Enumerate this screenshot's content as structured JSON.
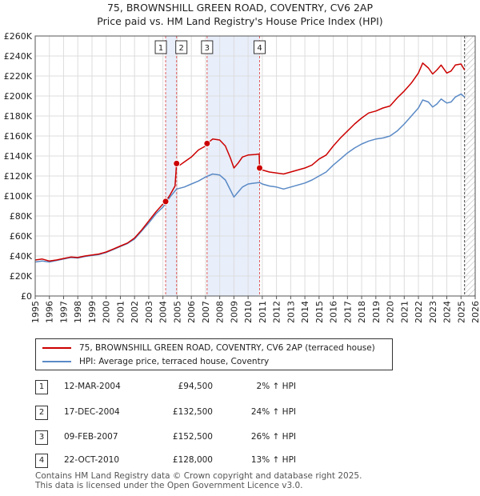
{
  "header": {
    "title": "75, BROWNSHILL GREEN ROAD, COVENTRY, CV6 2AP",
    "subtitle": "Price paid vs. HM Land Registry's House Price Index (HPI)"
  },
  "chart_data": {
    "type": "line",
    "y_tick_labels": [
      "£0",
      "£20K",
      "£40K",
      "£60K",
      "£80K",
      "£100K",
      "£120K",
      "£140K",
      "£160K",
      "£180K",
      "£200K",
      "£220K",
      "£240K",
      "£260K"
    ],
    "x_tick_labels": [
      "1995",
      "1996",
      "1997",
      "1998",
      "1999",
      "2000",
      "2001",
      "2002",
      "2003",
      "2004",
      "2005",
      "2006",
      "2007",
      "2008",
      "2009",
      "2010",
      "2011",
      "2012",
      "2013",
      "2014",
      "2015",
      "2016",
      "2017",
      "2018",
      "2019",
      "2020",
      "2021",
      "2022",
      "2023",
      "2024",
      "2025",
      "2026"
    ],
    "xlim": [
      1995,
      2026
    ],
    "ylim": [
      0,
      260000
    ],
    "series": [
      {
        "name": "75, BROWNSHILL GREEN ROAD, COVENTRY, CV6 2AP (terraced house)",
        "color": "#cc0000",
        "points": [
          [
            1995.0,
            36000
          ],
          [
            1995.5,
            37000
          ],
          [
            1996.0,
            35000
          ],
          [
            1996.5,
            36000
          ],
          [
            1997.0,
            37500
          ],
          [
            1997.5,
            39000
          ],
          [
            1998.0,
            38500
          ],
          [
            1998.5,
            40000
          ],
          [
            1999.0,
            41000
          ],
          [
            1999.5,
            42000
          ],
          [
            2000.0,
            44000
          ],
          [
            2000.5,
            47000
          ],
          [
            2001.0,
            50000
          ],
          [
            2001.5,
            53000
          ],
          [
            2002.0,
            58000
          ],
          [
            2002.5,
            66000
          ],
          [
            2003.0,
            75000
          ],
          [
            2003.5,
            84000
          ],
          [
            2004.0,
            92000
          ],
          [
            2004.19,
            94500
          ],
          [
            2004.5,
            101000
          ],
          [
            2004.85,
            110000
          ],
          [
            2004.96,
            132500
          ],
          [
            2005.2,
            131000
          ],
          [
            2005.5,
            134000
          ],
          [
            2006.0,
            139000
          ],
          [
            2006.5,
            146000
          ],
          [
            2007.0,
            150000
          ],
          [
            2007.11,
            152500
          ],
          [
            2007.5,
            157000
          ],
          [
            2008.0,
            156000
          ],
          [
            2008.4,
            150000
          ],
          [
            2008.75,
            138000
          ],
          [
            2009.0,
            128000
          ],
          [
            2009.3,
            133000
          ],
          [
            2009.6,
            139000
          ],
          [
            2010.0,
            141000
          ],
          [
            2010.5,
            141500
          ],
          [
            2010.78,
            142000
          ],
          [
            2010.81,
            128000
          ],
          [
            2011.0,
            126000
          ],
          [
            2011.5,
            124000
          ],
          [
            2012.0,
            123000
          ],
          [
            2012.5,
            122000
          ],
          [
            2013.0,
            124000
          ],
          [
            2013.5,
            126000
          ],
          [
            2014.0,
            128000
          ],
          [
            2014.5,
            131000
          ],
          [
            2015.0,
            137000
          ],
          [
            2015.5,
            141000
          ],
          [
            2016.0,
            150000
          ],
          [
            2016.5,
            158000
          ],
          [
            2017.0,
            165000
          ],
          [
            2017.5,
            172000
          ],
          [
            2018.0,
            178000
          ],
          [
            2018.5,
            183000
          ],
          [
            2019.0,
            185000
          ],
          [
            2019.5,
            188000
          ],
          [
            2020.0,
            190000
          ],
          [
            2020.5,
            198000
          ],
          [
            2021.0,
            205000
          ],
          [
            2021.5,
            213000
          ],
          [
            2022.0,
            223000
          ],
          [
            2022.3,
            233000
          ],
          [
            2022.7,
            228000
          ],
          [
            2023.0,
            222000
          ],
          [
            2023.3,
            226000
          ],
          [
            2023.6,
            231000
          ],
          [
            2024.0,
            223000
          ],
          [
            2024.3,
            225000
          ],
          [
            2024.6,
            231000
          ],
          [
            2025.0,
            232000
          ],
          [
            2025.25,
            226000
          ]
        ]
      },
      {
        "name": "HPI: Average price, terraced house, Coventry",
        "color": "#5a8ac6",
        "points": [
          [
            1995.0,
            34000
          ],
          [
            1995.5,
            35000
          ],
          [
            1996.0,
            34000
          ],
          [
            1996.5,
            35500
          ],
          [
            1997.0,
            37000
          ],
          [
            1997.5,
            38500
          ],
          [
            1998.0,
            38000
          ],
          [
            1998.5,
            39500
          ],
          [
            1999.0,
            40500
          ],
          [
            1999.5,
            41500
          ],
          [
            2000.0,
            43500
          ],
          [
            2000.5,
            46500
          ],
          [
            2001.0,
            49500
          ],
          [
            2001.5,
            52500
          ],
          [
            2002.0,
            57000
          ],
          [
            2002.5,
            65000
          ],
          [
            2003.0,
            73000
          ],
          [
            2003.5,
            82000
          ],
          [
            2004.0,
            89000
          ],
          [
            2004.19,
            92500
          ],
          [
            2004.5,
            99000
          ],
          [
            2004.96,
            107000
          ],
          [
            2005.5,
            109000
          ],
          [
            2006.0,
            112000
          ],
          [
            2006.5,
            115000
          ],
          [
            2007.0,
            119000
          ],
          [
            2007.5,
            122000
          ],
          [
            2008.0,
            121000
          ],
          [
            2008.4,
            116000
          ],
          [
            2008.75,
            106000
          ],
          [
            2009.0,
            99000
          ],
          [
            2009.3,
            104000
          ],
          [
            2009.6,
            109000
          ],
          [
            2010.0,
            112000
          ],
          [
            2010.5,
            113000
          ],
          [
            2010.81,
            113500
          ],
          [
            2011.0,
            112000
          ],
          [
            2011.5,
            110000
          ],
          [
            2012.0,
            109000
          ],
          [
            2012.5,
            107000
          ],
          [
            2013.0,
            109000
          ],
          [
            2013.5,
            111000
          ],
          [
            2014.0,
            113000
          ],
          [
            2014.5,
            116000
          ],
          [
            2015.0,
            120000
          ],
          [
            2015.5,
            124000
          ],
          [
            2016.0,
            131000
          ],
          [
            2016.5,
            137000
          ],
          [
            2017.0,
            143000
          ],
          [
            2017.5,
            148000
          ],
          [
            2018.0,
            152000
          ],
          [
            2018.5,
            155000
          ],
          [
            2019.0,
            157000
          ],
          [
            2019.5,
            158000
          ],
          [
            2020.0,
            160000
          ],
          [
            2020.5,
            165000
          ],
          [
            2021.0,
            172000
          ],
          [
            2021.5,
            180000
          ],
          [
            2022.0,
            188000
          ],
          [
            2022.3,
            196000
          ],
          [
            2022.7,
            194000
          ],
          [
            2023.0,
            189000
          ],
          [
            2023.3,
            192000
          ],
          [
            2023.6,
            197000
          ],
          [
            2024.0,
            193000
          ],
          [
            2024.3,
            194000
          ],
          [
            2024.6,
            199000
          ],
          [
            2025.0,
            202000
          ],
          [
            2025.25,
            199000
          ]
        ]
      }
    ],
    "sales": [
      {
        "id": "1",
        "x": 2004.19,
        "y": 94500
      },
      {
        "id": "2",
        "x": 2004.96,
        "y": 132500
      },
      {
        "id": "3",
        "x": 2007.11,
        "y": 152500
      },
      {
        "id": "4",
        "x": 2010.81,
        "y": 128000
      }
    ],
    "shaded_ranges": [
      [
        2004.19,
        2004.96
      ],
      [
        2007.11,
        2010.81
      ]
    ],
    "hatched_from": 2025.25,
    "grid": true
  },
  "legend": {
    "items": [
      {
        "label": "75, BROWNSHILL GREEN ROAD, COVENTRY, CV6 2AP (terraced house)",
        "color": "#cc0000"
      },
      {
        "label": "HPI: Average price, terraced house, Coventry",
        "color": "#5a8ac6"
      }
    ]
  },
  "transactions": [
    {
      "num": "1",
      "date": "12-MAR-2004",
      "price": "£94,500",
      "hpi": "2% ↑ HPI"
    },
    {
      "num": "2",
      "date": "17-DEC-2004",
      "price": "£132,500",
      "hpi": "24% ↑ HPI"
    },
    {
      "num": "3",
      "date": "09-FEB-2007",
      "price": "£152,500",
      "hpi": "26% ↑ HPI"
    },
    {
      "num": "4",
      "date": "22-OCT-2010",
      "price": "£128,000",
      "hpi": "13% ↑ HPI"
    }
  ],
  "footer": {
    "line1": "Contains HM Land Registry data © Crown copyright and database right 2025.",
    "line2": "This data is licensed under the Open Government Licence v3.0."
  }
}
